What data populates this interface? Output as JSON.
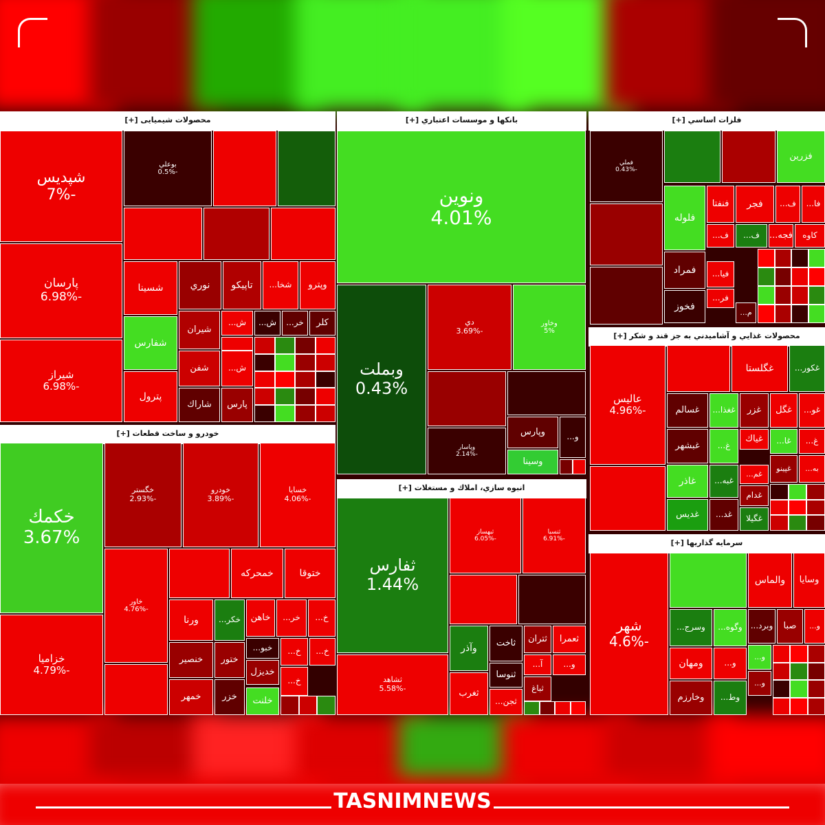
{
  "sections": [
    {
      "title": "محصولات شیمیایی [+]",
      "tiles": [
        {
          "label": "شپدیس",
          "change": "-7%"
        },
        {
          "label": "پارسان",
          "change": "-6.98%"
        },
        {
          "label": "شيراز",
          "change": "-6.98%"
        },
        {
          "label": "بوعلي",
          "change": "-0.5%"
        },
        {
          "label": "شسينا"
        },
        {
          "label": "نوري"
        },
        {
          "label": "تاپيكو"
        },
        {
          "label": "شخا..."
        },
        {
          "label": "وپترو"
        },
        {
          "label": "شفارس"
        },
        {
          "label": "شيران"
        },
        {
          "label": "ش..."
        },
        {
          "label": "ش..."
        },
        {
          "label": "خر..."
        },
        {
          "label": "كلر"
        },
        {
          "label": "پترول"
        },
        {
          "label": "شفن"
        },
        {
          "label": "ش..."
        },
        {
          "label": "شاراك"
        },
        {
          "label": "پارس"
        }
      ]
    },
    {
      "title": "بانکها و موسسات اعتباري [+]",
      "tiles": [
        {
          "label": "ونوين",
          "change": "4.01%"
        },
        {
          "label": "وبملت",
          "change": "0.43%"
        },
        {
          "label": "دي",
          "change": "-3.69%"
        },
        {
          "label": "وخاور",
          "change": "5%"
        },
        {
          "label": "وپاسار",
          "change": "-2.14%"
        },
        {
          "label": "وپارس"
        },
        {
          "label": "و..."
        },
        {
          "label": "وسينا"
        }
      ]
    },
    {
      "title": "فلزات اساسي [+]",
      "tiles": [
        {
          "label": "فملي",
          "change": "-0.43%"
        },
        {
          "label": "فزرين"
        },
        {
          "label": "فلوله"
        },
        {
          "label": "فنفتا"
        },
        {
          "label": "فجر"
        },
        {
          "label": "ف..."
        },
        {
          "label": "فا..."
        },
        {
          "label": "ف..."
        },
        {
          "label": "فجه..."
        },
        {
          "label": "كاوه"
        },
        {
          "label": "ف..."
        },
        {
          "label": "فمراد"
        },
        {
          "label": "فيا..."
        },
        {
          "label": "فخوز"
        },
        {
          "label": "فر..."
        },
        {
          "label": "م..."
        }
      ]
    },
    {
      "title": "محصولات غذايي و آشاميدني به جز قند و شكر [+]",
      "tiles": [
        {
          "label": "عاليس",
          "change": "-4.96%"
        },
        {
          "label": "غگلستا"
        },
        {
          "label": "غكور..."
        },
        {
          "label": "غسالم"
        },
        {
          "label": "غغذا..."
        },
        {
          "label": "غزر"
        },
        {
          "label": "غگل"
        },
        {
          "label": "غو..."
        },
        {
          "label": "غبشهر"
        },
        {
          "label": "غ..."
        },
        {
          "label": "غياك"
        },
        {
          "label": "غا..."
        },
        {
          "label": "غ..."
        },
        {
          "label": "غاذر"
        },
        {
          "label": "غبه..."
        },
        {
          "label": "غم..."
        },
        {
          "label": "غپينو"
        },
        {
          "label": "به..."
        },
        {
          "label": "غديس"
        },
        {
          "label": "غد..."
        },
        {
          "label": "غدام"
        },
        {
          "label": "غگيلا"
        }
      ]
    },
    {
      "title": "خودرو و ساخت قطعات [+]",
      "tiles": [
        {
          "label": "خكمك",
          "change": "3.67%"
        },
        {
          "label": "خزاميا",
          "change": "-4.79%"
        },
        {
          "label": "خگستر",
          "change": "-2.93%"
        },
        {
          "label": "خودرو",
          "change": "-3.89%"
        },
        {
          "label": "خسايا",
          "change": "-4.06%"
        },
        {
          "label": "خاور",
          "change": "-4.76%"
        },
        {
          "label": "خمحركه"
        },
        {
          "label": "ختوقا"
        },
        {
          "label": "ورنا"
        },
        {
          "label": "خكر..."
        },
        {
          "label": "خاهن"
        },
        {
          "label": "خر..."
        },
        {
          "label": "خ..."
        },
        {
          "label": "خنصير"
        },
        {
          "label": "ختور"
        },
        {
          "label": "خبو..."
        },
        {
          "label": "خ..."
        },
        {
          "label": "خ..."
        },
        {
          "label": "خمهر"
        },
        {
          "label": "خزر"
        },
        {
          "label": "خديزل"
        },
        {
          "label": "خ..."
        },
        {
          "label": "خلنت"
        }
      ]
    },
    {
      "title": "انبوه سازي، املاك و مستغلات [+]",
      "tiles": [
        {
          "label": "ثفارس",
          "change": "1.44%"
        },
        {
          "label": "ثشاهد",
          "change": "-5.58%"
        },
        {
          "label": "ثبهساز",
          "change": "-6.05%"
        },
        {
          "label": "ثنسبا",
          "change": "-6.91%"
        },
        {
          "label": "وآذر"
        },
        {
          "label": "ثاخت"
        },
        {
          "label": "ثتران"
        },
        {
          "label": "ثعمرا"
        },
        {
          "label": "ثغرب"
        },
        {
          "label": "ثنوسا"
        },
        {
          "label": "آ..."
        },
        {
          "label": "و..."
        },
        {
          "label": "ثجن..."
        },
        {
          "label": "ثباغ"
        }
      ]
    },
    {
      "title": "سرمايه گذاريها [+]",
      "tiles": [
        {
          "label": "شهر",
          "change": "-4.6%"
        },
        {
          "label": "والماس"
        },
        {
          "label": "وسايا"
        },
        {
          "label": "وسرج..."
        },
        {
          "label": "وگوه..."
        },
        {
          "label": "وبرد..."
        },
        {
          "label": "صبا"
        },
        {
          "label": "و..."
        },
        {
          "label": "ومهان"
        },
        {
          "label": "و..."
        },
        {
          "label": "و..."
        },
        {
          "label": "وخارزم"
        },
        {
          "label": "وط..."
        },
        {
          "label": "و..."
        }
      ]
    }
  ],
  "watermark": "TASNIMNEWS"
}
